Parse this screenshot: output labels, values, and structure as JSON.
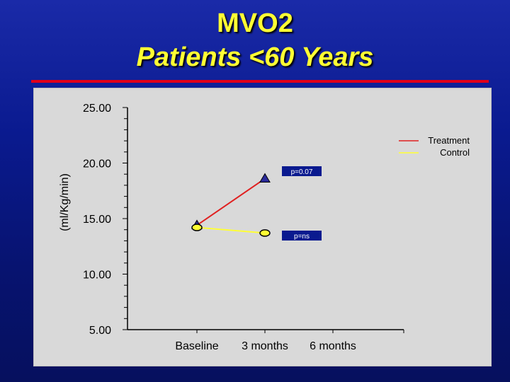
{
  "slide": {
    "title_line1": "MVO2",
    "title_line2": "Patients <60 Years"
  },
  "colors": {
    "title": "#ffff33",
    "background": "#0a1a8f",
    "rule": "#e0001a",
    "plot_bg": "#d9d9d9",
    "treatment": "#e02020",
    "control": "#ffff33"
  },
  "chart_data": {
    "type": "line",
    "title": "",
    "xlabel": "",
    "ylabel": "(ml/Kg/min)",
    "categories": [
      "Baseline",
      "3 months",
      "6 months"
    ],
    "ylim": [
      5,
      25
    ],
    "yticks": [
      "25.00",
      "20.00",
      "15.00",
      "10.00",
      "5.00"
    ],
    "series": [
      {
        "name": "Treatment",
        "color": "#e02020",
        "marker": "triangle",
        "values": [
          14.4,
          18.6,
          null
        ]
      },
      {
        "name": "Control",
        "color": "#ffff33",
        "marker": "circle",
        "values": [
          14.2,
          13.7,
          null
        ]
      }
    ],
    "annotations": [
      {
        "text": "p=0.07",
        "series": "Treatment",
        "category": "3 months"
      },
      {
        "text": "p=ns",
        "series": "Control",
        "category": "3 months"
      }
    ],
    "legend": "top-right",
    "grid": false
  }
}
